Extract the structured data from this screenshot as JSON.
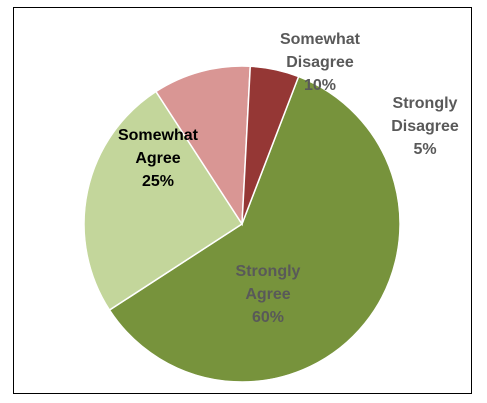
{
  "chart_data": {
    "type": "pie",
    "slices": [
      {
        "name_lines": [
          "Strongly",
          "Agree"
        ],
        "value": 60,
        "label": "60%",
        "color": "#77933c",
        "text_color": "#595959"
      },
      {
        "name_lines": [
          "Somewhat",
          "Agree"
        ],
        "value": 25,
        "label": "25%",
        "color": "#c3d69b",
        "text_color": "#000000"
      },
      {
        "name_lines": [
          "Somewhat",
          "Disagree"
        ],
        "value": 10,
        "label": "10%",
        "color": "#d99694",
        "text_color": "#595959"
      },
      {
        "name_lines": [
          "Strongly",
          "Disagree"
        ],
        "value": 5,
        "label": "5%",
        "color": "#953735",
        "text_color": "#595959"
      }
    ],
    "title": "",
    "legend": "none",
    "slice_border_color": "#ffffff"
  }
}
